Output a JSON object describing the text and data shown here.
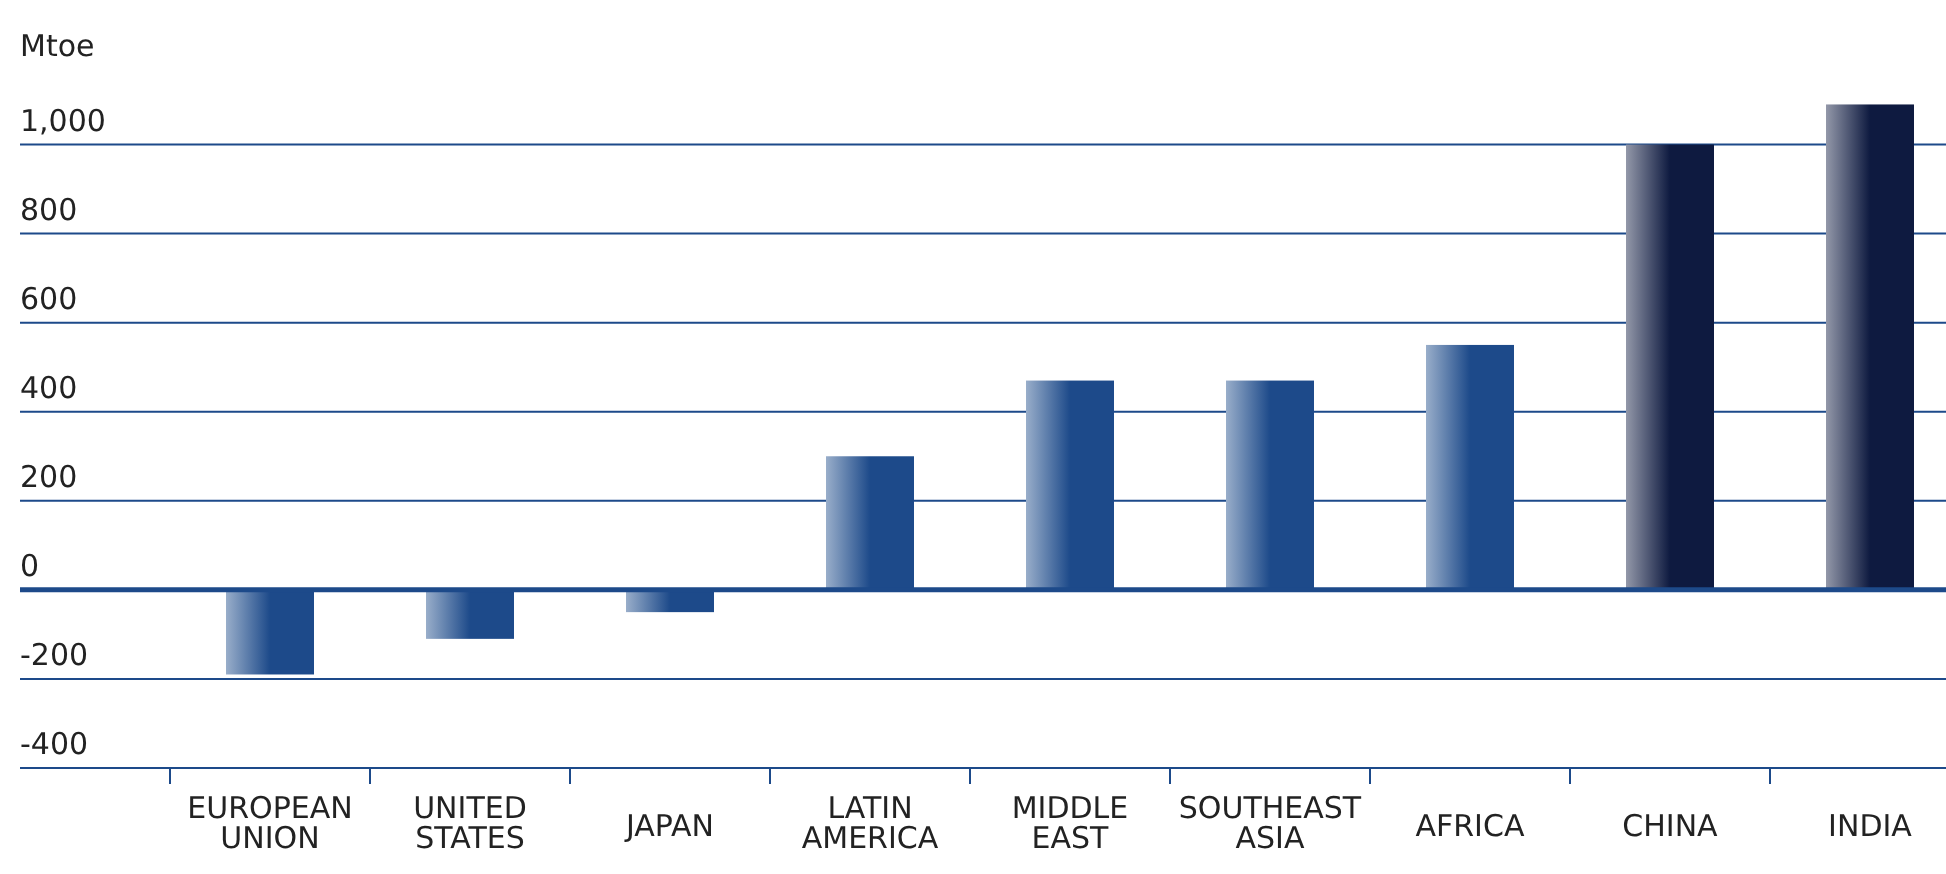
{
  "chart_data": {
    "type": "bar",
    "ylabel": "Mtoe",
    "categories": [
      "EUROPEAN UNION",
      "UNITED STATES",
      "JAPAN",
      "LATIN AMERICA",
      "MIDDLE EAST",
      "SOUTHEAST ASIA",
      "AFRICA",
      "CHINA",
      "INDIA"
    ],
    "values": [
      -190,
      -110,
      -50,
      300,
      470,
      470,
      550,
      1000,
      1090
    ],
    "colors": [
      "#1d4a8a",
      "#1d4a8a",
      "#1d4a8a",
      "#1d4a8a",
      "#1d4a8a",
      "#1d4a8a",
      "#1d4a8a",
      "#0e1a40",
      "#0e1a40"
    ],
    "ylim": [
      -400,
      1100
    ],
    "yticks": [
      -400,
      -200,
      0,
      200,
      400,
      600,
      800,
      {
        "value": 1000,
        "label": "1,000"
      }
    ],
    "grid": "y",
    "ref_lines": [
      {
        "axis": "y",
        "value": 0,
        "color": "#1d4a8a"
      }
    ]
  }
}
